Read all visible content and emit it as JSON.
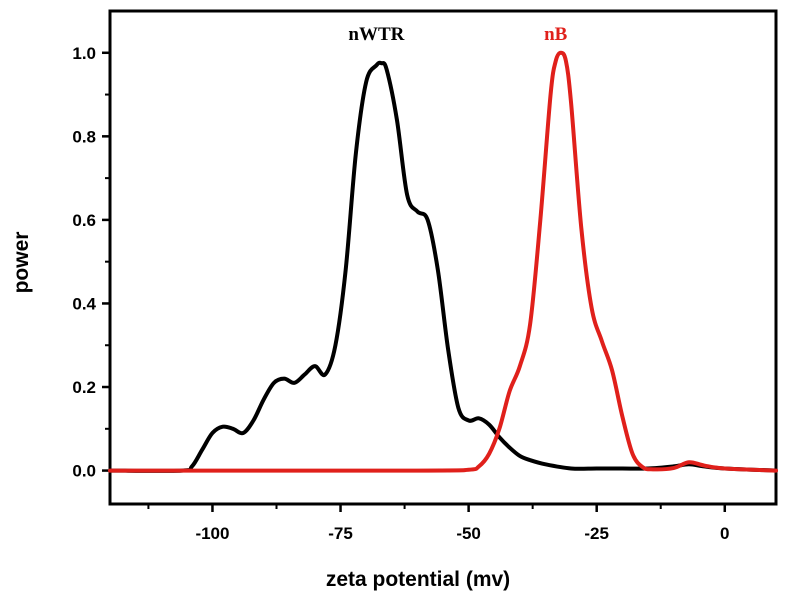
{
  "chart_data": {
    "type": "line",
    "title": "",
    "xlabel": "zeta potential (mv)",
    "ylabel": "power",
    "xlim": [
      -120,
      10
    ],
    "ylim": [
      -0.08,
      1.1
    ],
    "xticks": [
      -100,
      -75,
      -50,
      -25,
      0
    ],
    "xtick_labels": [
      "-100",
      "-75",
      "-50",
      "-25",
      "0"
    ],
    "yticks": [
      0.0,
      0.2,
      0.4,
      0.6,
      0.8,
      1.0
    ],
    "ytick_labels": [
      "0.0",
      "0.2",
      "0.4",
      "0.6",
      "0.8",
      "1.0"
    ],
    "grid": false,
    "legend": "none",
    "series": [
      {
        "name": "nWTR",
        "color": "#000000",
        "label_at": [
          -68,
          1.03
        ],
        "x": [
          -120,
          -106,
          -104,
          -102,
          -100,
          -98,
          -96,
          -94,
          -92,
          -90,
          -88,
          -86,
          -84,
          -82,
          -80,
          -78,
          -76,
          -74,
          -72,
          -70,
          -68,
          -67,
          -66,
          -64,
          -62,
          -60,
          -58,
          -56,
          -54,
          -52,
          -50,
          -48,
          -46,
          -44,
          -42,
          -40,
          -38,
          -35,
          -30,
          -25,
          -20,
          -15,
          -10,
          -7,
          -4,
          0,
          10
        ],
        "y": [
          0,
          0,
          0.01,
          0.05,
          0.09,
          0.105,
          0.1,
          0.09,
          0.12,
          0.17,
          0.21,
          0.22,
          0.21,
          0.23,
          0.25,
          0.23,
          0.3,
          0.48,
          0.76,
          0.93,
          0.97,
          0.975,
          0.96,
          0.84,
          0.66,
          0.62,
          0.6,
          0.48,
          0.29,
          0.15,
          0.12,
          0.125,
          0.11,
          0.08,
          0.055,
          0.035,
          0.025,
          0.015,
          0.005,
          0.005,
          0.005,
          0.005,
          0.01,
          0.015,
          0.01,
          0.005,
          0.0
        ]
      },
      {
        "name": "nB",
        "color": "#e0201b",
        "label_at": [
          -33,
          1.03
        ],
        "x": [
          -120,
          -60,
          -50,
          -48,
          -46,
          -44,
          -42,
          -40,
          -38,
          -36,
          -34,
          -33,
          -32,
          -31,
          -30,
          -28,
          -26,
          -24,
          -22,
          -20,
          -18,
          -16,
          -14,
          -10,
          -7,
          -4,
          0,
          10
        ],
        "y": [
          0,
          0,
          0.002,
          0.01,
          0.04,
          0.1,
          0.19,
          0.25,
          0.35,
          0.6,
          0.9,
          0.98,
          1.0,
          0.98,
          0.88,
          0.58,
          0.39,
          0.31,
          0.24,
          0.13,
          0.04,
          0.008,
          0.003,
          0.006,
          0.02,
          0.012,
          0.005,
          0.0
        ]
      }
    ]
  }
}
